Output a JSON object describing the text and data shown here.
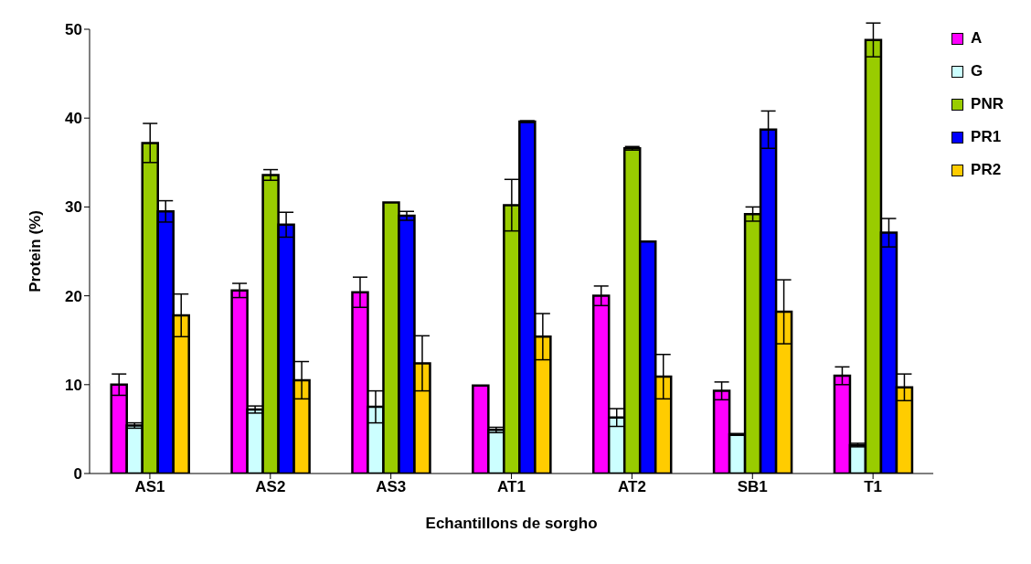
{
  "chart_data": {
    "type": "bar",
    "ylabel": "Protein (%)",
    "xlabel": "Echantillons de sorgho",
    "categories": [
      "AS1",
      "AS2",
      "AS3",
      "AT1",
      "AT2",
      "SB1",
      "T1"
    ],
    "series": [
      {
        "name": "A",
        "color": "#ff00ff",
        "values": [
          10.0,
          20.6,
          20.4,
          9.9,
          20.0,
          9.3,
          11.0
        ],
        "errors": [
          1.2,
          0.8,
          1.7,
          null,
          1.1,
          1.0,
          1.0
        ]
      },
      {
        "name": "G",
        "color": "#ccffff",
        "values": [
          5.4,
          7.2,
          7.5,
          4.9,
          6.3,
          4.4,
          3.2
        ],
        "errors": [
          0.3,
          0.4,
          1.8,
          0.3,
          1.0,
          0.1,
          0.2
        ]
      },
      {
        "name": "PNR",
        "color": "#99cc00",
        "values": [
          37.2,
          33.6,
          30.5,
          30.2,
          36.6,
          29.2,
          48.8
        ],
        "errors": [
          2.2,
          0.6,
          null,
          2.9,
          0.2,
          0.8,
          1.9
        ]
      },
      {
        "name": "PR1",
        "color": "#0000ff",
        "values": [
          29.5,
          28.0,
          29.0,
          39.6,
          26.1,
          38.7,
          27.1
        ],
        "errors": [
          1.2,
          1.4,
          0.5,
          0.1,
          null,
          2.1,
          1.6
        ]
      },
      {
        "name": "PR2",
        "color": "#ffcc00",
        "values": [
          17.8,
          10.5,
          12.4,
          15.4,
          10.9,
          18.2,
          9.7
        ],
        "errors": [
          2.4,
          2.1,
          3.1,
          2.6,
          2.5,
          3.6,
          1.5
        ]
      }
    ],
    "ylim": [
      0,
      50
    ],
    "yticks": [
      0,
      10,
      20,
      30,
      40,
      50
    ],
    "legend": "top right"
  }
}
